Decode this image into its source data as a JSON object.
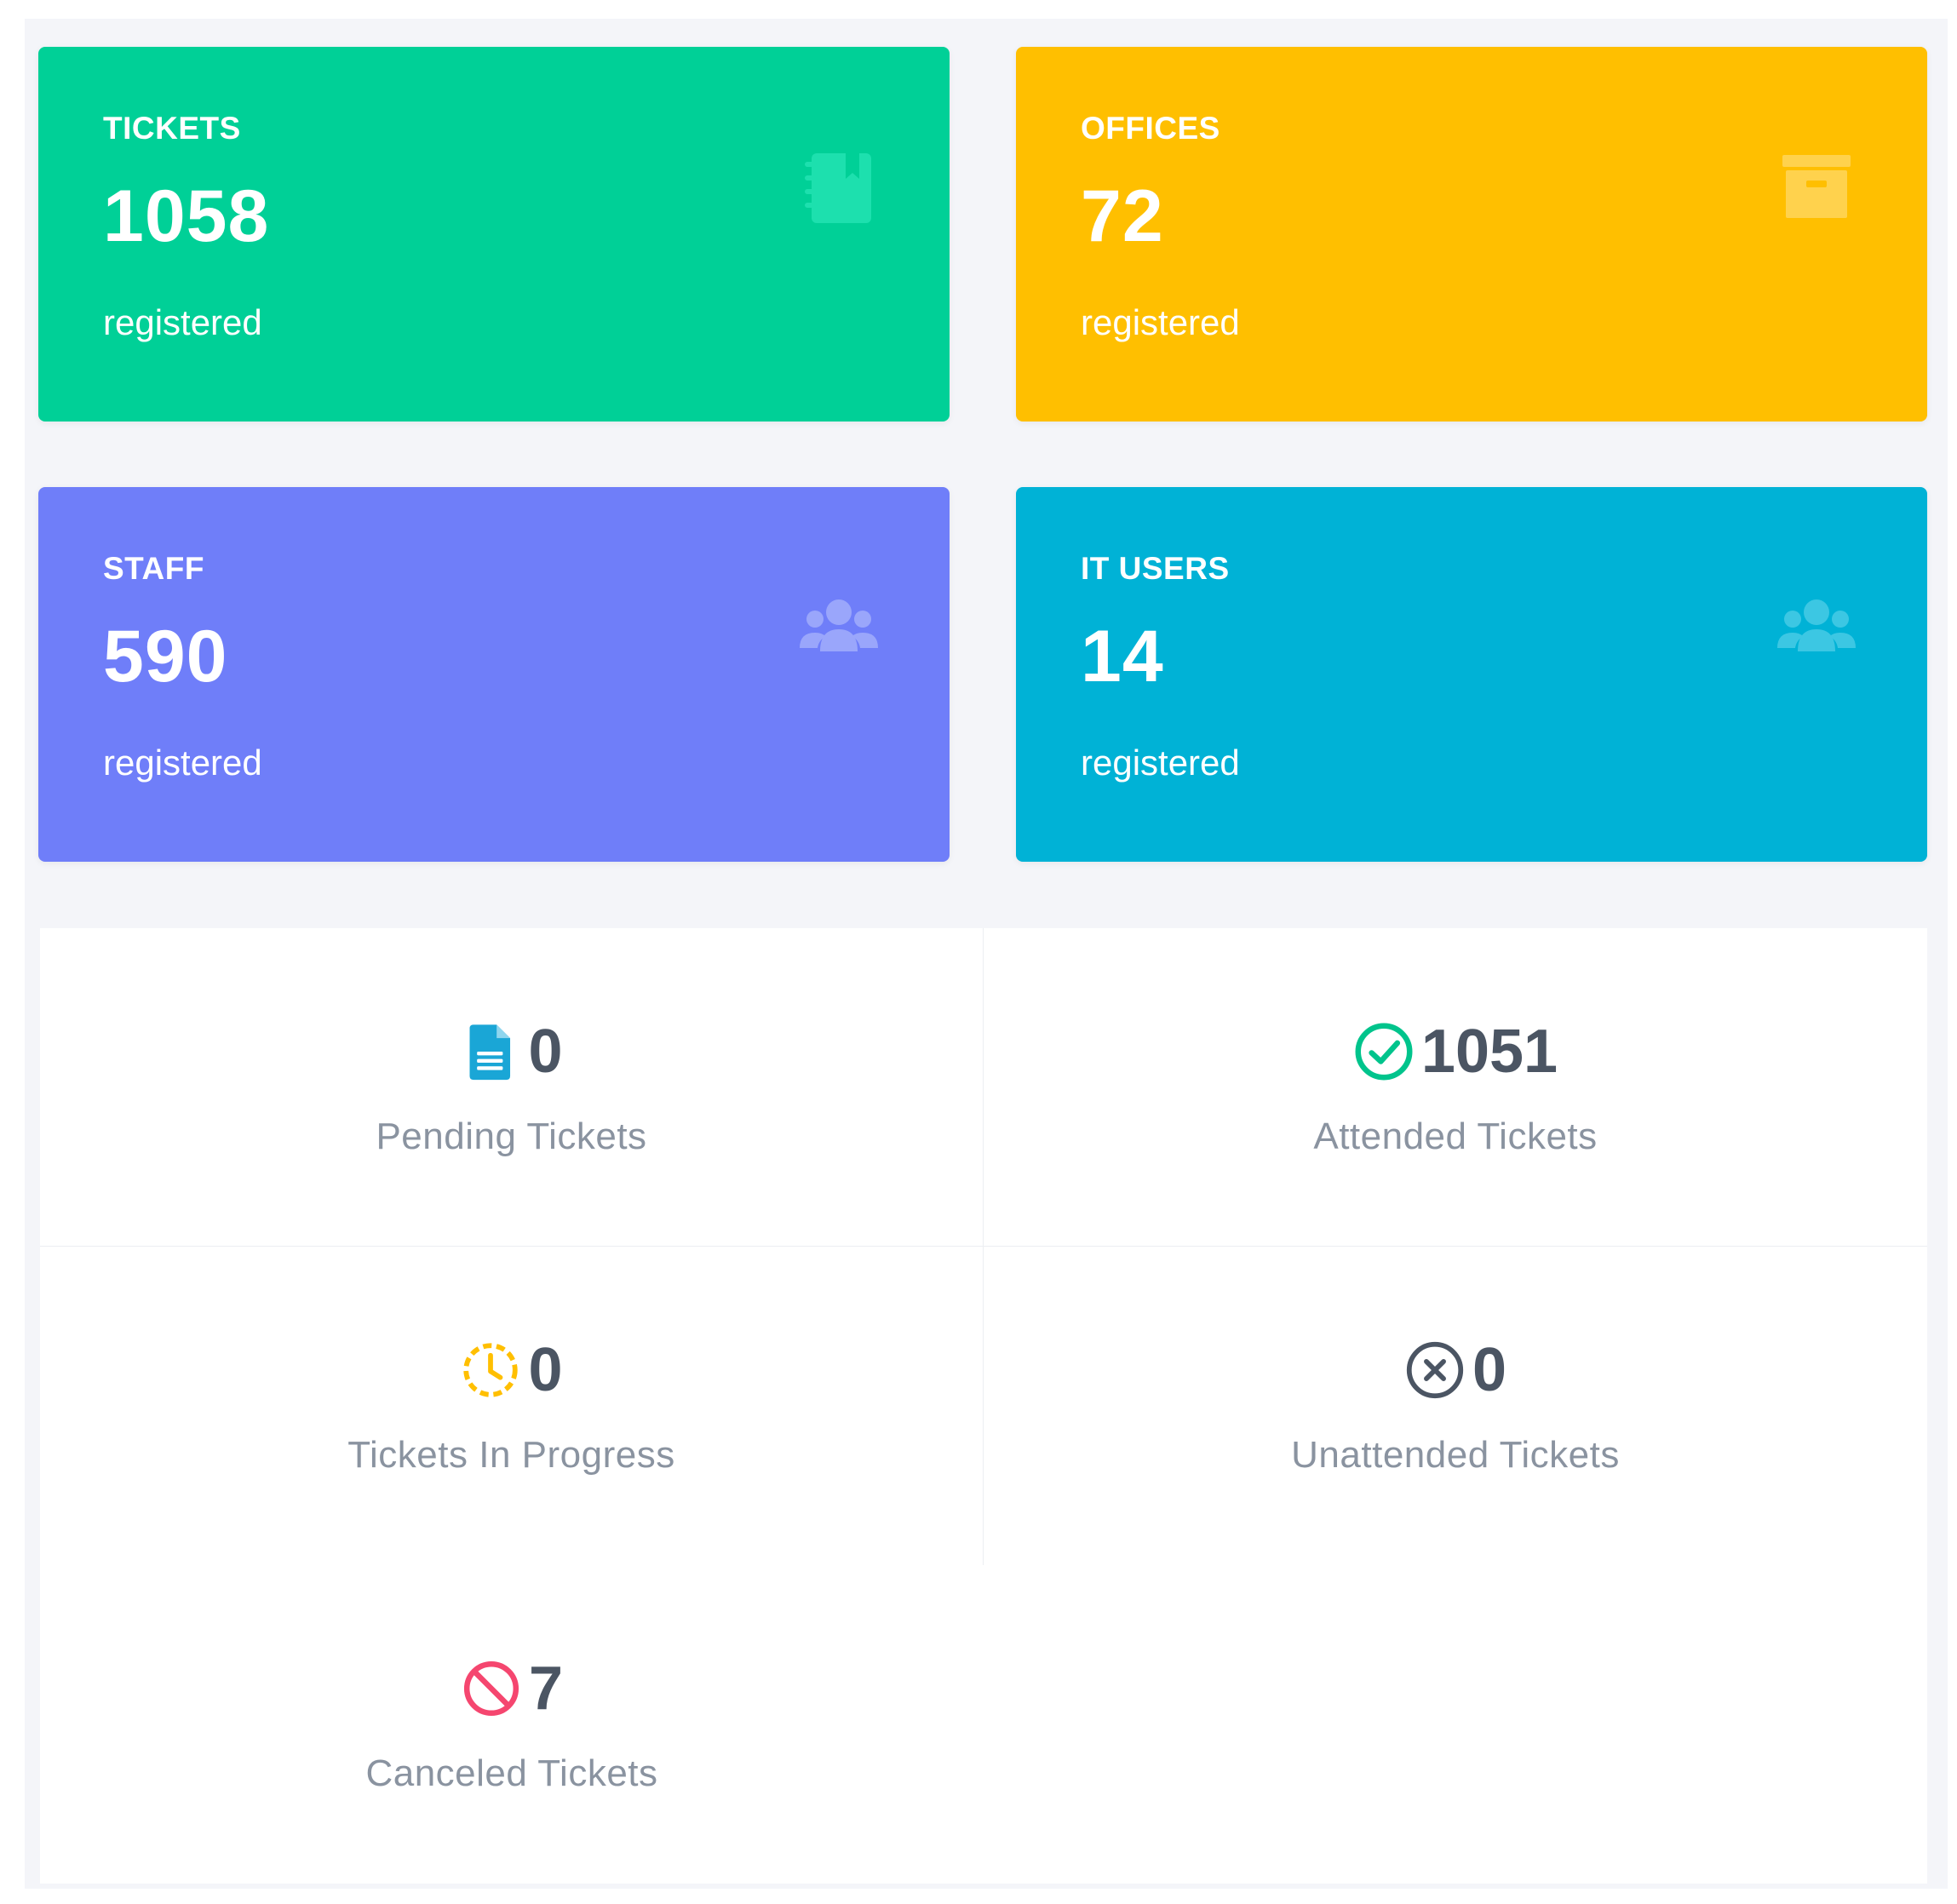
{
  "cards": {
    "tickets": {
      "label": "TICKETS",
      "value": "1058",
      "sub": "registered",
      "icon": "notebook-icon",
      "color": "#00d097"
    },
    "offices": {
      "label": "OFFICES",
      "value": "72",
      "sub": "registered",
      "icon": "archive-box-icon",
      "color": "#ffbf00"
    },
    "staff": {
      "label": "STAFF",
      "value": "590",
      "sub": "registered",
      "icon": "users-icon",
      "color": "#6f7ef9"
    },
    "itusers": {
      "label": "IT USERS",
      "value": "14",
      "sub": "registered",
      "icon": "users-icon",
      "color": "#00b2d6"
    }
  },
  "stats": {
    "pending": {
      "value": "0",
      "label": "Pending Tickets",
      "icon": "document-icon",
      "color": "#1aa6d6"
    },
    "attended": {
      "value": "1051",
      "label": "Attended Tickets",
      "icon": "check-circle-icon",
      "color": "#00c48c"
    },
    "progress": {
      "value": "0",
      "label": "Tickets In Progress",
      "icon": "clock-dashed-icon",
      "color": "#ffbf00"
    },
    "unattended": {
      "value": "0",
      "label": "Unattended Tickets",
      "icon": "x-circle-icon",
      "color": "#4b5563"
    },
    "canceled": {
      "value": "7",
      "label": "Canceled Tickets",
      "icon": "ban-icon",
      "color": "#f5466f"
    }
  }
}
